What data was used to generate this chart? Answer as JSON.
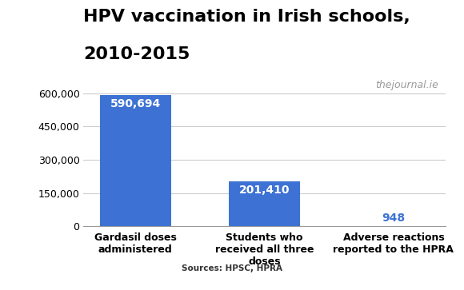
{
  "title_line1": "HPV vaccination in Irish schools,",
  "title_line2": "2010-2015",
  "categories": [
    "Gardasil doses\nadministered",
    "Students who\nreceived all three\ndoses",
    "Adverse reactions\nreported to the HPRA"
  ],
  "values": [
    590694,
    201410,
    948
  ],
  "bar_color": "#3d72d4",
  "label_color_inside": "#ffffff",
  "label_color_outside": "#3d72d4",
  "bar_width": 0.55,
  "ylim": [
    0,
    680000
  ],
  "yticks": [
    0,
    150000,
    300000,
    450000,
    600000
  ],
  "ytick_labels": [
    "0",
    "150,000",
    "300,000",
    "450,000",
    "600,000"
  ],
  "source_text": "Sources: HPSC, HPRA",
  "watermark": "thejournal.ie",
  "background_color": "#ffffff",
  "title_fontsize": 16,
  "tick_label_fontsize": 9,
  "bar_label_fontsize": 10,
  "source_fontsize": 7.5,
  "watermark_fontsize": 9
}
